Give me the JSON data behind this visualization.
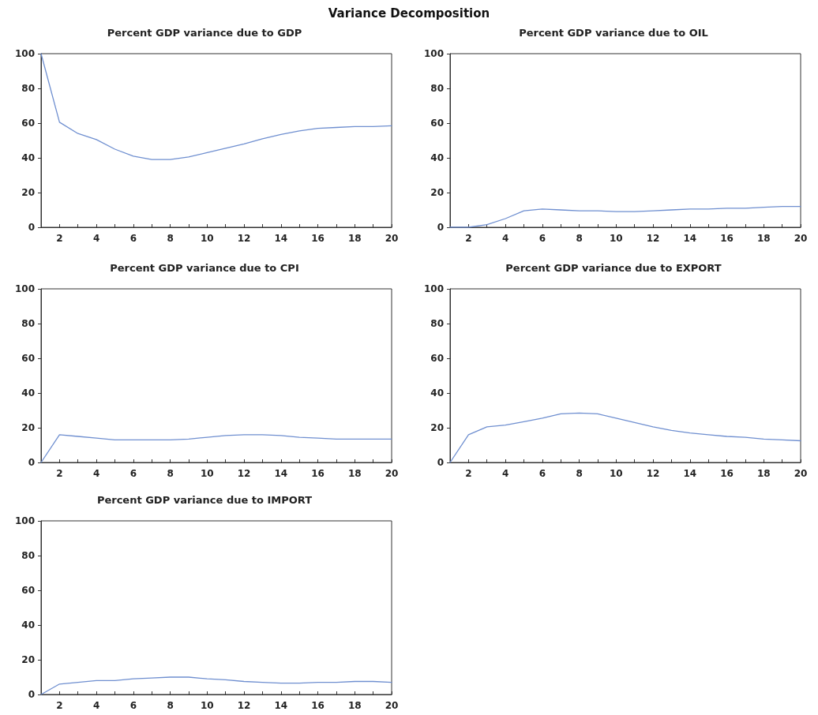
{
  "chart_data": [
    {
      "type": "other",
      "title": "Variance Decomposition"
    },
    {
      "type": "line",
      "title": "Percent GDP variance due to GDP",
      "x": [
        1,
        2,
        3,
        4,
        5,
        6,
        7,
        8,
        9,
        10,
        11,
        12,
        13,
        14,
        15,
        16,
        17,
        18,
        19,
        20
      ],
      "series": [
        {
          "color": "#6f8fd0",
          "values": [
            100,
            60.5,
            54,
            50.5,
            45,
            41,
            39,
            39,
            40.5,
            43,
            45.5,
            48,
            51,
            53.5,
            55.5,
            57,
            57.5,
            58,
            58,
            58.5
          ]
        }
      ],
      "xlim": [
        1,
        20
      ],
      "xticks": [
        {
          "value": 1,
          "label": null
        },
        2,
        {
          "value": 3,
          "label": null
        },
        4,
        {
          "value": 5,
          "label": null
        },
        6,
        {
          "value": 7,
          "label": null
        },
        8,
        {
          "value": 9,
          "label": null
        },
        10,
        {
          "value": 11,
          "label": null
        },
        12,
        {
          "value": 13,
          "label": null
        },
        14,
        {
          "value": 15,
          "label": null
        },
        16,
        {
          "value": 17,
          "label": null
        },
        18,
        {
          "value": 19,
          "label": null
        },
        20
      ],
      "ylim": [
        0,
        100
      ],
      "yticks": [
        0,
        20,
        40,
        60,
        80,
        100
      ],
      "marker": "none",
      "line_style": "solid"
    },
    {
      "type": "line",
      "title": "Percent GDP variance due to OIL",
      "x": [
        1,
        2,
        3,
        4,
        5,
        6,
        7,
        8,
        9,
        10,
        11,
        12,
        13,
        14,
        15,
        16,
        17,
        18,
        19,
        20
      ],
      "series": [
        {
          "color": "#6f8fd0",
          "values": [
            0,
            0,
            1.5,
            5,
            9.5,
            10.5,
            10,
            9.5,
            9.5,
            9,
            9,
            9.5,
            10,
            10.5,
            10.5,
            11,
            11,
            11.5,
            12,
            12
          ]
        }
      ],
      "xlim": [
        1,
        20
      ],
      "xticks": [
        {
          "value": 1,
          "label": null
        },
        2,
        {
          "value": 3,
          "label": null
        },
        4,
        {
          "value": 5,
          "label": null
        },
        6,
        {
          "value": 7,
          "label": null
        },
        8,
        {
          "value": 9,
          "label": null
        },
        10,
        {
          "value": 11,
          "label": null
        },
        12,
        {
          "value": 13,
          "label": null
        },
        14,
        {
          "value": 15,
          "label": null
        },
        16,
        {
          "value": 17,
          "label": null
        },
        18,
        {
          "value": 19,
          "label": null
        },
        20
      ],
      "ylim": [
        0,
        100
      ],
      "yticks": [
        0,
        20,
        40,
        60,
        80,
        100
      ],
      "marker": "none",
      "line_style": "solid"
    },
    {
      "type": "line",
      "title": "Percent GDP variance due to CPI",
      "x": [
        1,
        2,
        3,
        4,
        5,
        6,
        7,
        8,
        9,
        10,
        11,
        12,
        13,
        14,
        15,
        16,
        17,
        18,
        19,
        20
      ],
      "series": [
        {
          "color": "#6f8fd0",
          "values": [
            0,
            16,
            15,
            14,
            13,
            13,
            13,
            13,
            13.5,
            14.5,
            15.5,
            16,
            16,
            15.5,
            14.5,
            14,
            13.5,
            13.5,
            13.5,
            13.5
          ]
        }
      ],
      "xlim": [
        1,
        20
      ],
      "xticks": [
        {
          "value": 1,
          "label": null
        },
        2,
        {
          "value": 3,
          "label": null
        },
        4,
        {
          "value": 5,
          "label": null
        },
        6,
        {
          "value": 7,
          "label": null
        },
        8,
        {
          "value": 9,
          "label": null
        },
        10,
        {
          "value": 11,
          "label": null
        },
        12,
        {
          "value": 13,
          "label": null
        },
        14,
        {
          "value": 15,
          "label": null
        },
        16,
        {
          "value": 17,
          "label": null
        },
        18,
        {
          "value": 19,
          "label": null
        },
        20
      ],
      "ylim": [
        0,
        100
      ],
      "yticks": [
        0,
        20,
        40,
        60,
        80,
        100
      ],
      "marker": "none",
      "line_style": "solid"
    },
    {
      "type": "line",
      "title": "Percent GDP variance due to EXPORT",
      "x": [
        1,
        2,
        3,
        4,
        5,
        6,
        7,
        8,
        9,
        10,
        11,
        12,
        13,
        14,
        15,
        16,
        17,
        18,
        19,
        20
      ],
      "series": [
        {
          "color": "#6f8fd0",
          "values": [
            0,
            16,
            20.5,
            21.5,
            23.5,
            25.5,
            28,
            28.5,
            28,
            25.5,
            23,
            20.5,
            18.5,
            17,
            16,
            15,
            14.5,
            13.5,
            13,
            12.5
          ]
        }
      ],
      "xlim": [
        1,
        20
      ],
      "xticks": [
        {
          "value": 1,
          "label": null
        },
        2,
        {
          "value": 3,
          "label": null
        },
        4,
        {
          "value": 5,
          "label": null
        },
        6,
        {
          "value": 7,
          "label": null
        },
        8,
        {
          "value": 9,
          "label": null
        },
        10,
        {
          "value": 11,
          "label": null
        },
        12,
        {
          "value": 13,
          "label": null
        },
        14,
        {
          "value": 15,
          "label": null
        },
        16,
        {
          "value": 17,
          "label": null
        },
        18,
        {
          "value": 19,
          "label": null
        },
        20
      ],
      "ylim": [
        0,
        100
      ],
      "yticks": [
        0,
        20,
        40,
        60,
        80,
        100
      ],
      "marker": "none",
      "line_style": "solid"
    },
    {
      "type": "line",
      "title": "Percent GDP variance due to IMPORT",
      "x": [
        1,
        2,
        3,
        4,
        5,
        6,
        7,
        8,
        9,
        10,
        11,
        12,
        13,
        14,
        15,
        16,
        17,
        18,
        19,
        20
      ],
      "series": [
        {
          "color": "#6f8fd0",
          "values": [
            0,
            6,
            7,
            8,
            8,
            9,
            9.5,
            10,
            10,
            9,
            8.5,
            7.5,
            7,
            6.5,
            6.5,
            7,
            7,
            7.5,
            7.5,
            7
          ]
        }
      ],
      "xlim": [
        1,
        20
      ],
      "xticks": [
        {
          "value": 1,
          "label": null
        },
        2,
        {
          "value": 3,
          "label": null
        },
        4,
        {
          "value": 5,
          "label": null
        },
        6,
        {
          "value": 7,
          "label": null
        },
        8,
        {
          "value": 9,
          "label": null
        },
        10,
        {
          "value": 11,
          "label": null
        },
        12,
        {
          "value": 13,
          "label": null
        },
        14,
        {
          "value": 15,
          "label": null
        },
        16,
        {
          "value": 17,
          "label": null
        },
        18,
        {
          "value": 19,
          "label": null
        },
        20
      ],
      "ylim": [
        0,
        100
      ],
      "yticks": [
        0,
        20,
        40,
        60,
        80,
        100
      ],
      "marker": "none",
      "line_style": "solid"
    }
  ]
}
